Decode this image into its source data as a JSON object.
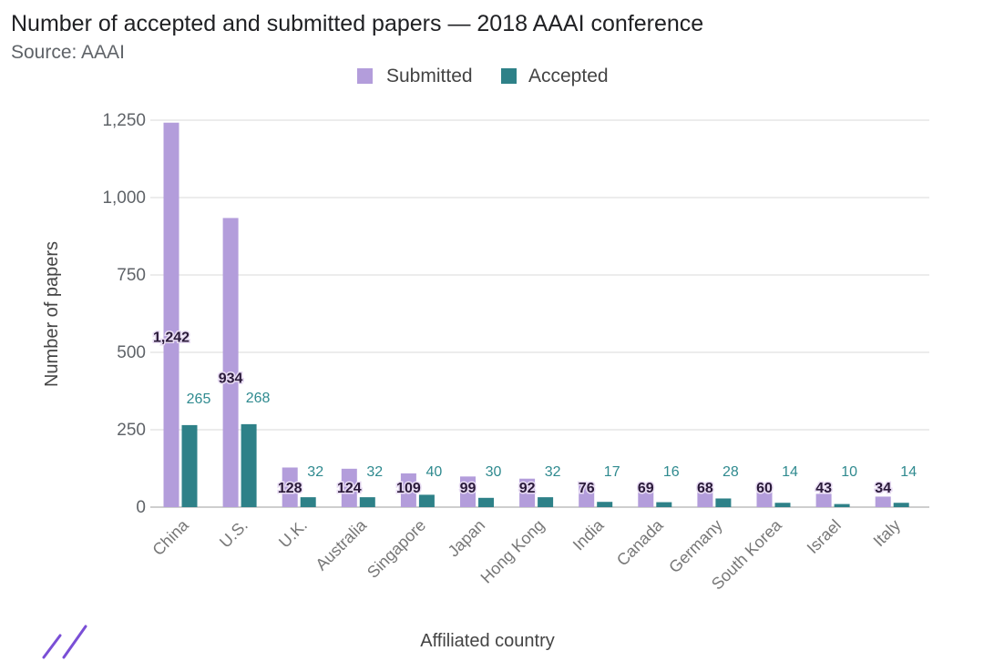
{
  "chart_data": {
    "type": "bar",
    "title": "Number of accepted and submitted papers — 2018 AAAI conference",
    "subtitle": "Source: AAAI",
    "xlabel": "Affiliated country",
    "ylabel": "Number of papers",
    "ylim": [
      0,
      1250
    ],
    "yticks": [
      0,
      250,
      500,
      750,
      1000,
      1250
    ],
    "ytick_labels": [
      "0",
      "250",
      "500",
      "750",
      "1,000",
      "1,250"
    ],
    "grid": true,
    "legend": "top-center",
    "categories": [
      "China",
      "U.S.",
      "U.K.",
      "Australia",
      "Singapore",
      "Japan",
      "Hong Kong",
      "India",
      "Canada",
      "Germany",
      "South Korea",
      "Israel",
      "Italy"
    ],
    "series": [
      {
        "name": "Submitted",
        "color": "#b39ddb",
        "values": [
          1242,
          934,
          128,
          124,
          109,
          99,
          92,
          76,
          69,
          68,
          60,
          43,
          34
        ],
        "labels": [
          "1,242",
          "934",
          "128",
          "124",
          "109",
          "99",
          "92",
          "76",
          "69",
          "68",
          "60",
          "43",
          "34"
        ]
      },
      {
        "name": "Accepted",
        "color": "#2e8188",
        "values": [
          265,
          268,
          32,
          32,
          40,
          30,
          32,
          17,
          16,
          28,
          14,
          10,
          14
        ],
        "labels": [
          "265",
          "268",
          "32",
          "32",
          "40",
          "30",
          "32",
          "17",
          "16",
          "28",
          "14",
          "10",
          "14"
        ]
      }
    ]
  }
}
